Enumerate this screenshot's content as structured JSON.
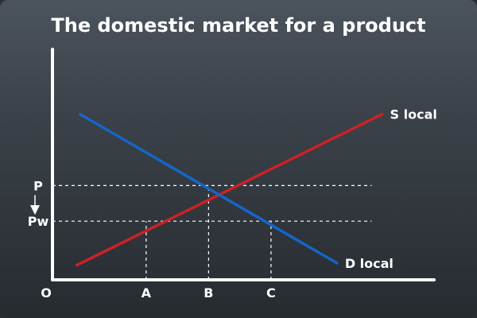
{
  "chart_data": {
    "type": "line",
    "title": "The domestic market for a product",
    "xlabel": "",
    "ylabel": "",
    "xlim": [
      0,
      11
    ],
    "ylim": [
      0,
      11
    ],
    "grid": false,
    "origin_label": "O",
    "series": [
      {
        "name": "S local",
        "color": "#cc2127",
        "x": [
          0.7,
          9.5
        ],
        "y": [
          0.7,
          7.9
        ]
      },
      {
        "name": "D local",
        "color": "#1565c8",
        "x": [
          0.8,
          8.2
        ],
        "y": [
          7.9,
          0.8
        ]
      }
    ],
    "y_markers": [
      {
        "label": "P",
        "value": 4.5
      },
      {
        "label": "Pw",
        "value": 2.8
      }
    ],
    "x_markers": [
      {
        "label": "A",
        "value": 2.7,
        "to": 2.8
      },
      {
        "label": "B",
        "value": 4.5,
        "to": 4.5
      },
      {
        "label": "C",
        "value": 6.3,
        "to": 2.8
      }
    ],
    "price_change_arrow": {
      "from": "P",
      "to": "Pw"
    },
    "colors": {
      "axis": "#ffffff",
      "guides": "#ffffff",
      "supply": "#cc2127",
      "demand": "#1565c8"
    }
  }
}
